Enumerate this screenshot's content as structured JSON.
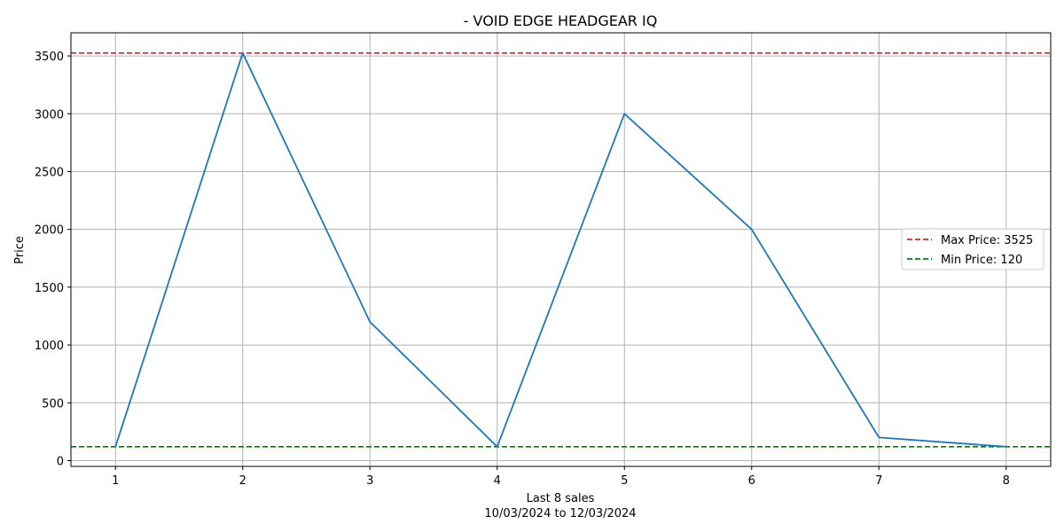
{
  "chart_data": {
    "type": "line",
    "title": "- VOID EDGE HEADGEAR IQ",
    "xlabel": "Last 8 sales",
    "xlabel_sub": "10/03/2024 to 12/03/2024",
    "ylabel": "Price",
    "x": [
      1,
      2,
      3,
      4,
      5,
      6,
      7,
      8
    ],
    "x_ticks": [
      "1",
      "2",
      "3",
      "4",
      "5",
      "6",
      "7",
      "8"
    ],
    "y_ticks": [
      "0",
      "500",
      "1000",
      "1500",
      "2000",
      "2500",
      "3000",
      "3500"
    ],
    "xlim": [
      0.65,
      8.35
    ],
    "ylim": [
      -50,
      3700
    ],
    "grid": true,
    "series": [
      {
        "values": [
          120,
          3525,
          1200,
          120,
          3000,
          2000,
          200,
          120
        ],
        "color": "#1f77b4"
      }
    ],
    "reference_lines": [
      {
        "label": "Max Price: 3525",
        "value": 3525,
        "color": "#d62728",
        "style": "dashed"
      },
      {
        "label": "Min Price: 120",
        "value": 120,
        "color": "#008000",
        "style": "dashed"
      }
    ],
    "legend_position": "center-right"
  }
}
